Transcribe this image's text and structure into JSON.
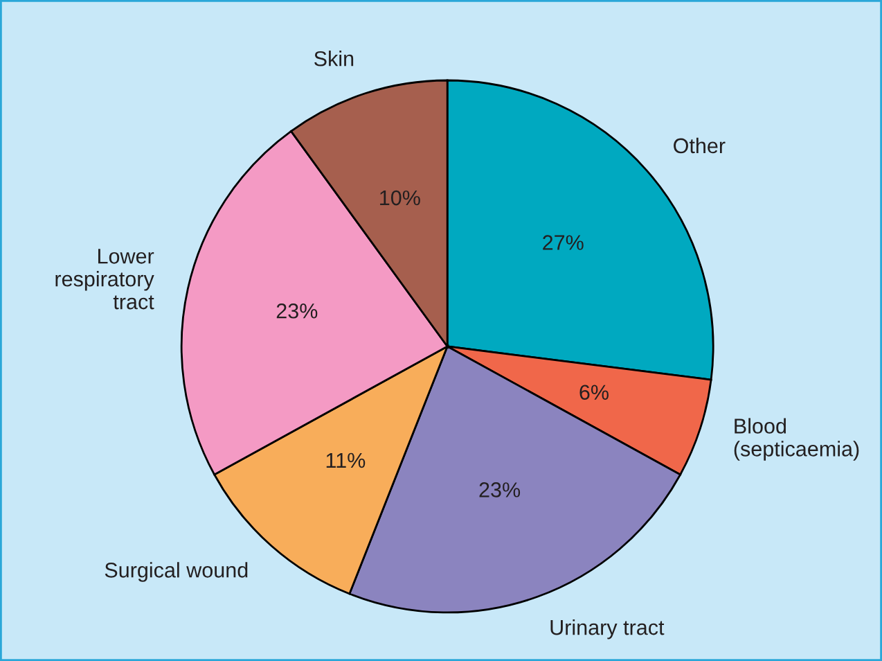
{
  "chart_data": {
    "type": "pie",
    "categories": [
      "Other",
      "Blood\n(septicaemia)",
      "Urinary tract",
      "Surgical wound",
      "Lower\nrespiratory\ntract",
      "Skin"
    ],
    "values": [
      27,
      6,
      23,
      11,
      23,
      10
    ],
    "value_labels": [
      "27%",
      "6%",
      "23%",
      "11%",
      "23%",
      "10%"
    ],
    "colors": [
      "#00a9c0",
      "#f0674a",
      "#8b84bf",
      "#f8ad5a",
      "#f49ac4",
      "#a65f4e"
    ],
    "legend": false
  }
}
